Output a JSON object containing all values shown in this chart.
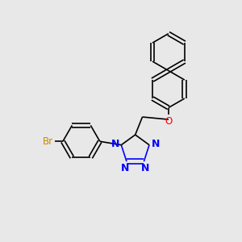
{
  "bg_color": "#e8e8e8",
  "bond_color": "#000000",
  "N_color": "#0000ff",
  "O_color": "#ff0000",
  "Br_color": "#cc8800",
  "bond_width": 1.2,
  "figsize": [
    3.0,
    3.0
  ],
  "dpi": 100,
  "xlim": [
    0,
    10
  ],
  "ylim": [
    0,
    10
  ]
}
